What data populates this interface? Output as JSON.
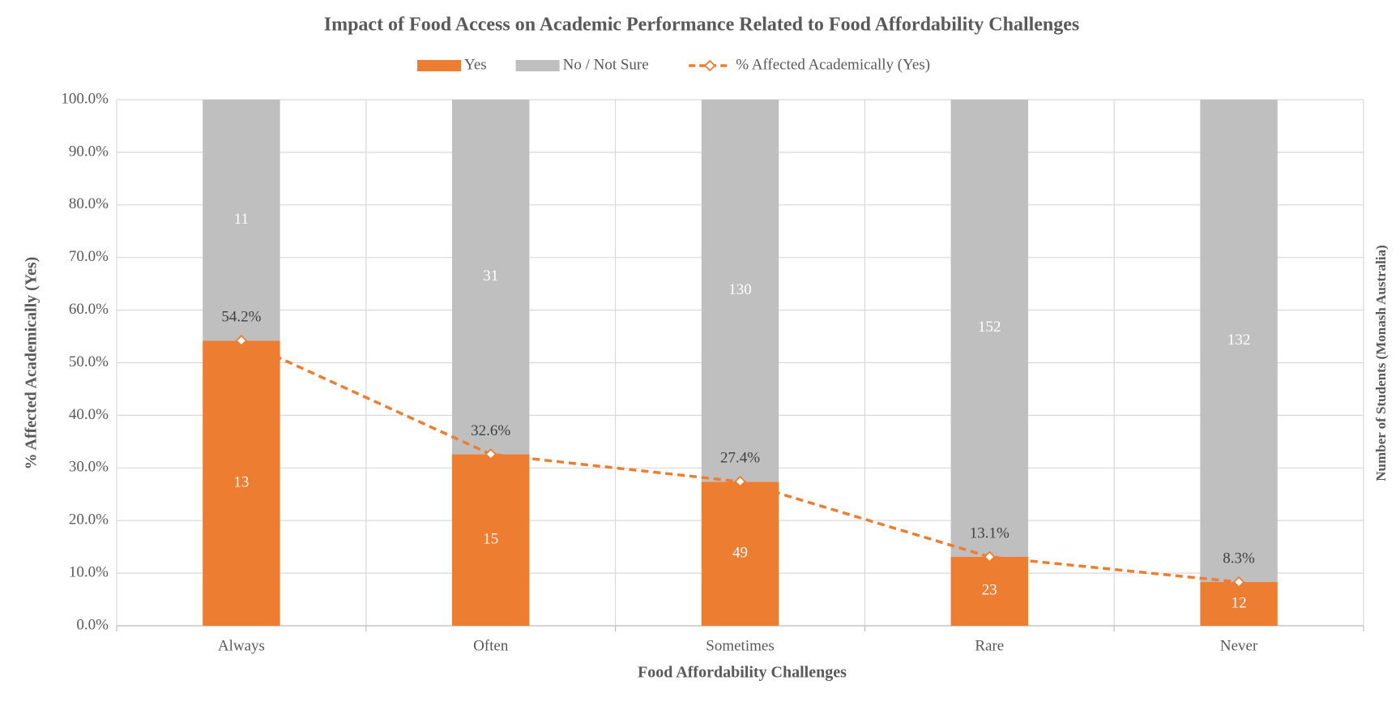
{
  "chart_data": {
    "type": "bar",
    "stacking": "percent",
    "title": "Impact of Food Access on Academic Performance Related to Food Affordability Challenges",
    "x_label": "Food Affordability Challenges",
    "y_label": "% Affected Academically (Yes)",
    "y2_label": "Number of Students (Monash Australia)",
    "categories": [
      "Always",
      "Often",
      "Sometimes",
      "Rare",
      "Never"
    ],
    "series": [
      {
        "name": "Yes",
        "color": "#ED7D31",
        "values": [
          13,
          15,
          49,
          23,
          12
        ]
      },
      {
        "name": "No / Not Sure",
        "color": "#BFBFBF",
        "values": [
          11,
          31,
          130,
          152,
          132
        ]
      },
      {
        "name": "% Affected Academically (Yes)",
        "type": "line",
        "color": "#ED7D31",
        "dashed": true,
        "marker": "diamond",
        "values": [
          54.2,
          32.6,
          27.4,
          13.1,
          8.3
        ],
        "value_labels": [
          "54.2%",
          "32.6%",
          "27.4%",
          "13.1%",
          "8.3%"
        ]
      }
    ],
    "ylim": [
      0,
      100
    ],
    "yticks": [
      {
        "value": 0,
        "label": "0.0%"
      },
      {
        "value": 10,
        "label": "10.0%"
      },
      {
        "value": 20,
        "label": "20.0%"
      },
      {
        "value": 30,
        "label": "30.0%"
      },
      {
        "value": 40,
        "label": "40.0%"
      },
      {
        "value": 50,
        "label": "50.0%"
      },
      {
        "value": 60,
        "label": "60.0%"
      },
      {
        "value": 70,
        "label": "70.0%"
      },
      {
        "value": 80,
        "label": "80.0%"
      },
      {
        "value": 90,
        "label": "90.0%"
      },
      {
        "value": 100,
        "label": "100.0%"
      }
    ],
    "grid": true,
    "legend": "top"
  }
}
